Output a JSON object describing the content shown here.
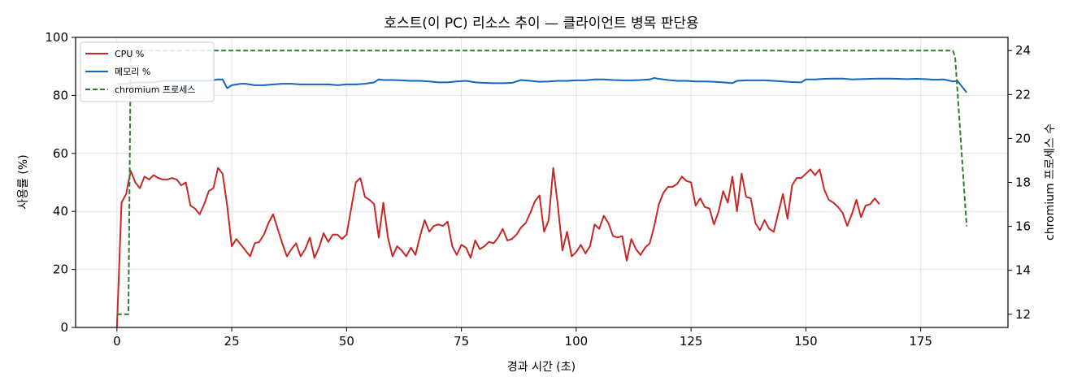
{
  "chart_data": {
    "type": "line",
    "title": "호스트(이 PC) 리소스 추이 — 클라이언트 병목 판단용",
    "xlabel": "경과 시간 (초)",
    "ylabel": "사용률 (%)",
    "y2label": "chromium 프로세스 수",
    "xlim": [
      -9,
      194
    ],
    "ylim": [
      0,
      100
    ],
    "y2lim": [
      11.4,
      24.6
    ],
    "xticks": [
      0,
      25,
      50,
      75,
      100,
      125,
      150,
      175
    ],
    "yticks": [
      0,
      20,
      40,
      60,
      80,
      100
    ],
    "y2ticks": [
      12,
      14,
      16,
      18,
      20,
      22,
      24
    ],
    "grid": true,
    "legend_position": "top-left",
    "series": [
      {
        "name": "CPU %",
        "axis": "left",
        "color": "#c62828",
        "style": "solid",
        "points": [
          [
            0,
            0
          ],
          [
            1,
            43
          ],
          [
            2,
            46
          ],
          [
            3,
            54
          ],
          [
            4,
            50
          ],
          [
            5,
            48
          ],
          [
            6,
            52
          ],
          [
            7,
            51
          ],
          [
            8,
            52.5
          ],
          [
            9,
            51.5
          ],
          [
            10,
            51
          ],
          [
            11,
            51
          ],
          [
            12,
            51.5
          ],
          [
            13,
            51
          ],
          [
            14,
            49
          ],
          [
            15,
            50
          ],
          [
            16,
            42
          ],
          [
            17,
            41
          ],
          [
            18,
            39
          ],
          [
            19,
            42.5
          ],
          [
            20,
            47
          ],
          [
            21,
            48
          ],
          [
            22,
            55
          ],
          [
            23,
            53
          ],
          [
            24,
            42
          ],
          [
            25,
            28
          ],
          [
            26,
            30.5
          ],
          [
            27,
            28.5
          ],
          [
            28,
            26.5
          ],
          [
            29,
            24.5
          ],
          [
            30,
            29
          ],
          [
            31,
            29.5
          ],
          [
            32,
            32
          ],
          [
            33,
            36
          ],
          [
            34,
            39
          ],
          [
            35,
            34
          ],
          [
            36,
            29
          ],
          [
            37,
            24.5
          ],
          [
            38,
            27
          ],
          [
            39,
            29
          ],
          [
            40,
            24.5
          ],
          [
            41,
            27
          ],
          [
            42,
            31
          ],
          [
            43,
            24
          ],
          [
            44,
            27.5
          ],
          [
            45,
            32.5
          ],
          [
            46,
            29.5
          ],
          [
            47,
            32
          ],
          [
            48,
            32
          ],
          [
            49,
            30.5
          ],
          [
            50,
            32
          ],
          [
            51,
            41
          ],
          [
            52,
            50
          ],
          [
            53,
            51.5
          ],
          [
            54,
            45
          ],
          [
            55,
            44
          ],
          [
            56,
            42.5
          ],
          [
            57,
            31
          ],
          [
            58,
            43
          ],
          [
            59,
            31
          ],
          [
            60,
            24.5
          ],
          [
            61,
            28
          ],
          [
            62,
            26.5
          ],
          [
            63,
            24.5
          ],
          [
            64,
            27.5
          ],
          [
            65,
            25
          ],
          [
            66,
            31.5
          ],
          [
            67,
            37
          ],
          [
            68,
            33
          ],
          [
            69,
            35
          ],
          [
            70,
            35.5
          ],
          [
            71,
            35
          ],
          [
            72,
            36.5
          ],
          [
            73,
            28
          ],
          [
            74,
            25
          ],
          [
            75,
            28.5
          ],
          [
            76,
            27.5
          ],
          [
            77,
            24
          ],
          [
            78,
            30
          ],
          [
            79,
            27
          ],
          [
            80,
            28
          ],
          [
            81,
            29.5
          ],
          [
            82,
            29
          ],
          [
            83,
            31
          ],
          [
            84,
            34
          ],
          [
            85,
            30
          ],
          [
            86,
            30.5
          ],
          [
            87,
            32
          ],
          [
            88,
            34.5
          ],
          [
            89,
            36
          ],
          [
            90,
            39.5
          ],
          [
            91,
            43.5
          ],
          [
            92,
            45.5
          ],
          [
            93,
            33
          ],
          [
            94,
            37
          ],
          [
            95,
            55
          ],
          [
            96,
            42
          ],
          [
            97,
            26.5
          ],
          [
            98,
            33
          ],
          [
            99,
            24.5
          ],
          [
            100,
            26
          ],
          [
            101,
            28.5
          ],
          [
            102,
            25.5
          ],
          [
            103,
            28
          ],
          [
            104,
            35.5
          ],
          [
            105,
            34
          ],
          [
            106,
            38.5
          ],
          [
            107,
            36
          ],
          [
            108,
            31.5
          ],
          [
            109,
            31
          ],
          [
            110,
            31.5
          ],
          [
            111,
            23
          ],
          [
            112,
            30.5
          ],
          [
            113,
            27
          ],
          [
            114,
            25
          ],
          [
            115,
            27.5
          ],
          [
            116,
            29
          ],
          [
            117,
            35
          ],
          [
            118,
            42.5
          ],
          [
            119,
            46.5
          ],
          [
            120,
            48.5
          ],
          [
            121,
            48.5
          ],
          [
            122,
            49.5
          ],
          [
            123,
            52
          ],
          [
            124,
            50.5
          ],
          [
            125,
            50
          ],
          [
            126,
            42
          ],
          [
            127,
            44.5
          ],
          [
            128,
            41.5
          ],
          [
            129,
            41
          ],
          [
            130,
            35.5
          ],
          [
            131,
            40
          ],
          [
            132,
            47
          ],
          [
            133,
            43
          ],
          [
            134,
            52
          ],
          [
            135,
            40
          ],
          [
            136,
            53
          ],
          [
            137,
            45
          ],
          [
            138,
            44.5
          ],
          [
            139,
            36
          ],
          [
            140,
            33.5
          ],
          [
            141,
            37
          ],
          [
            142,
            34
          ],
          [
            143,
            33
          ],
          [
            144,
            39.5
          ],
          [
            145,
            46
          ],
          [
            146,
            37.5
          ],
          [
            147,
            49
          ],
          [
            148,
            51.5
          ],
          [
            149,
            51.5
          ],
          [
            150,
            53
          ],
          [
            151,
            54.5
          ],
          [
            152,
            52.5
          ],
          [
            153,
            54.5
          ],
          [
            154,
            47.5
          ],
          [
            155,
            44
          ],
          [
            156,
            43
          ],
          [
            157,
            41.5
          ],
          [
            158,
            39.5
          ],
          [
            159,
            35
          ],
          [
            160,
            39
          ],
          [
            161,
            44
          ],
          [
            162,
            38
          ],
          [
            163,
            42
          ],
          [
            164,
            42.5
          ],
          [
            165,
            44.5
          ],
          [
            166,
            42.5
          ]
        ]
      },
      {
        "name": "메모리 %",
        "axis": "left",
        "color": "#1565c0",
        "style": "solid",
        "points": [
          [
            0,
            84
          ],
          [
            2,
            84
          ],
          [
            4,
            84.5
          ],
          [
            6,
            84.5
          ],
          [
            8,
            84.5
          ],
          [
            10,
            85
          ],
          [
            12,
            85
          ],
          [
            14,
            85
          ],
          [
            16,
            85
          ],
          [
            18,
            85
          ],
          [
            20,
            85
          ],
          [
            22,
            85.5
          ],
          [
            23,
            85.5
          ],
          [
            24,
            82.5
          ],
          [
            25,
            83.5
          ],
          [
            27,
            84
          ],
          [
            28,
            84
          ],
          [
            30,
            83.5
          ],
          [
            32,
            83.5
          ],
          [
            34,
            83.8
          ],
          [
            36,
            84
          ],
          [
            38,
            84
          ],
          [
            40,
            83.8
          ],
          [
            42,
            83.8
          ],
          [
            44,
            83.8
          ],
          [
            46,
            83.8
          ],
          [
            48,
            83.5
          ],
          [
            50,
            83.8
          ],
          [
            52,
            83.8
          ],
          [
            54,
            84
          ],
          [
            56,
            84.5
          ],
          [
            57,
            85.5
          ],
          [
            58,
            85.3
          ],
          [
            60,
            85.3
          ],
          [
            62,
            85.2
          ],
          [
            64,
            85
          ],
          [
            66,
            85
          ],
          [
            68,
            84.8
          ],
          [
            70,
            84.5
          ],
          [
            72,
            84.5
          ],
          [
            74,
            84.8
          ],
          [
            76,
            85
          ],
          [
            78,
            84.5
          ],
          [
            80,
            84.3
          ],
          [
            82,
            84.2
          ],
          [
            84,
            84.2
          ],
          [
            86,
            84.3
          ],
          [
            88,
            85.3
          ],
          [
            90,
            85
          ],
          [
            92,
            84.7
          ],
          [
            94,
            84.8
          ],
          [
            96,
            85
          ],
          [
            98,
            85
          ],
          [
            100,
            85.2
          ],
          [
            102,
            85.2
          ],
          [
            104,
            85.5
          ],
          [
            106,
            85.5
          ],
          [
            108,
            85.3
          ],
          [
            110,
            85.2
          ],
          [
            112,
            85.2
          ],
          [
            114,
            85.3
          ],
          [
            116,
            85.5
          ],
          [
            117,
            86
          ],
          [
            118,
            85.7
          ],
          [
            120,
            85.3
          ],
          [
            122,
            85
          ],
          [
            124,
            85
          ],
          [
            126,
            84.8
          ],
          [
            128,
            84.8
          ],
          [
            130,
            84.7
          ],
          [
            132,
            84.5
          ],
          [
            134,
            84.2
          ],
          [
            135,
            85
          ],
          [
            137,
            85.2
          ],
          [
            139,
            85.2
          ],
          [
            141,
            85.2
          ],
          [
            143,
            85
          ],
          [
            145,
            84.8
          ],
          [
            147,
            84.6
          ],
          [
            149,
            84.5
          ],
          [
            150,
            85.5
          ],
          [
            152,
            85.5
          ],
          [
            154,
            85.7
          ],
          [
            156,
            85.8
          ],
          [
            158,
            85.8
          ],
          [
            160,
            85.5
          ],
          [
            162,
            85.6
          ],
          [
            164,
            85.7
          ],
          [
            166,
            85.8
          ],
          [
            168,
            85.8
          ],
          [
            170,
            85.7
          ],
          [
            172,
            85.6
          ],
          [
            174,
            85.7
          ],
          [
            176,
            85.6
          ],
          [
            178,
            85.4
          ],
          [
            180,
            85.5
          ],
          [
            182,
            84.8
          ],
          [
            183,
            85
          ],
          [
            184,
            83
          ],
          [
            185,
            81
          ]
        ]
      },
      {
        "name": "chromium 프로세스",
        "axis": "right",
        "color": "#2e7d32",
        "style": "dashed",
        "points": [
          [
            0,
            12
          ],
          [
            2.5,
            12
          ],
          [
            3,
            24
          ],
          [
            182,
            24
          ],
          [
            182.5,
            23.7
          ],
          [
            185,
            16
          ]
        ]
      }
    ]
  }
}
